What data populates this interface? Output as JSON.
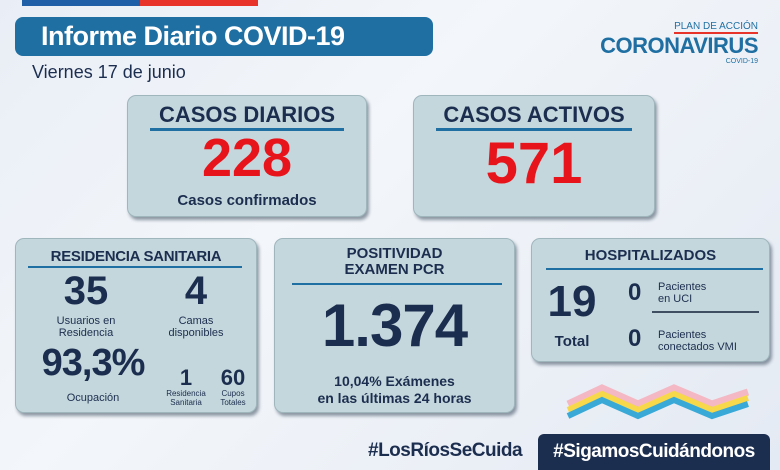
{
  "header": {
    "title": "Informe Diario COVID-19",
    "date": "Viernes 17 de junio"
  },
  "logo": {
    "line1": "PLAN DE ACCIÓN",
    "line2": "CORONAVIRUS",
    "line3": "COVID-19"
  },
  "casos_diarios": {
    "title": "CASOS DIARIOS",
    "value": "228",
    "caption": "Casos confirmados"
  },
  "casos_activos": {
    "title": "CASOS ACTIVOS",
    "value": "571"
  },
  "residencia": {
    "title": "RESIDENCIA SANITARIA",
    "usuarios": "35",
    "usuarios_label1": "Usuarios en",
    "usuarios_label2": "Residencia",
    "camas": "4",
    "camas_label1": "Camas",
    "camas_label2": "disponibles",
    "ocupacion": "93,3%",
    "ocupacion_label": "Ocupación",
    "residencias": "1",
    "residencias_label1": "Residencia",
    "residencias_label2": "Sanitaria",
    "cupos": "60",
    "cupos_label1": "Cupos",
    "cupos_label2": "Totales"
  },
  "positividad": {
    "title1": "POSITIVIDAD",
    "title2": "EXAMEN PCR",
    "value": "1.374",
    "caption1": "10,04% Exámenes",
    "caption2": "en las últimas 24 horas"
  },
  "hospitalizados": {
    "title": "HOSPITALIZADOS",
    "total": "19",
    "total_label": "Total",
    "uci": "0",
    "uci_label1": "Pacientes",
    "uci_label2": "en UCI",
    "vmi": "0",
    "vmi_label1": "Pacientes",
    "vmi_label2": "conectados VMI"
  },
  "footer": {
    "hashtag1": "#LosRíosSeCuida",
    "hashtag2": "#SigamosCuidándonos"
  },
  "colors": {
    "accent": "#1f6fa3",
    "navy": "#1c2e4f",
    "red": "#e8141c",
    "card": "#c4d7dc"
  }
}
